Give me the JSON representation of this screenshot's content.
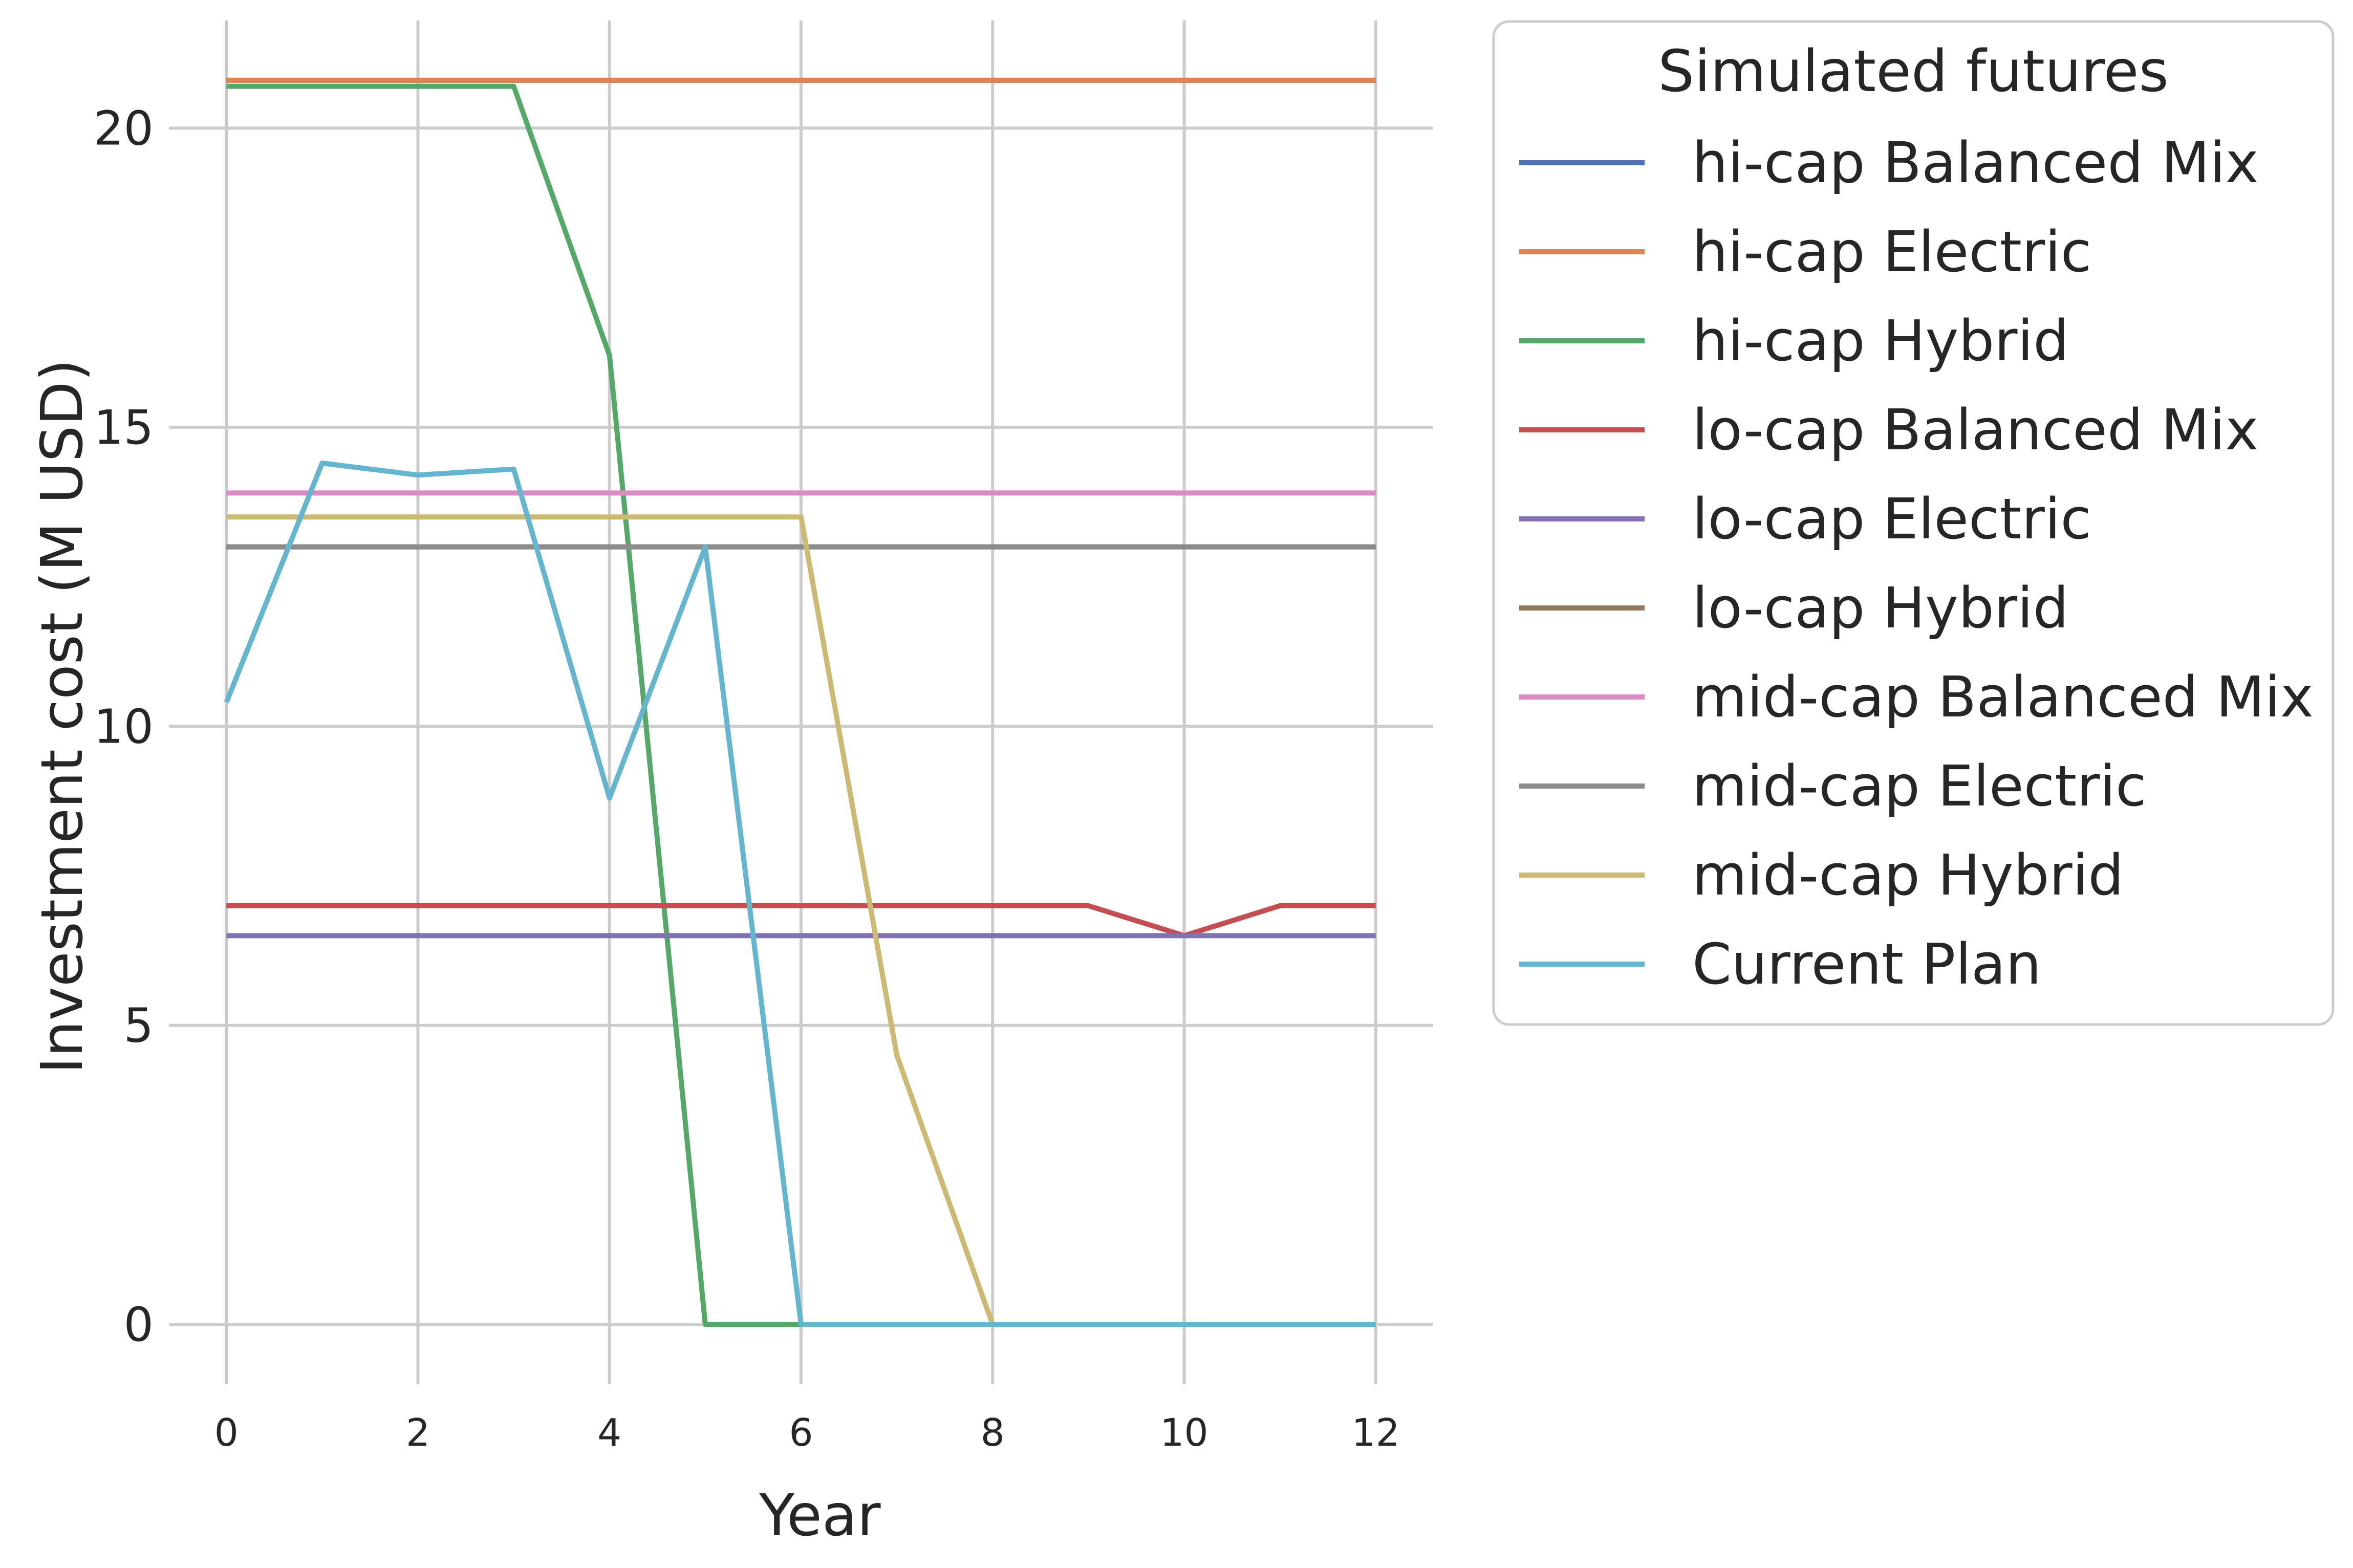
{
  "chart_data": {
    "type": "line",
    "title": "",
    "xlabel": "Year",
    "ylabel": "Investment cost (M USD)",
    "xlim": [
      -0.6,
      12.6
    ],
    "ylim": [
      -1.0,
      21.8
    ],
    "xticks": [
      0,
      2,
      4,
      6,
      8,
      10,
      12
    ],
    "yticks": [
      0,
      5,
      10,
      15,
      20
    ],
    "grid": true,
    "legend": {
      "title": "Simulated futures",
      "placement": "outside-right-top"
    },
    "x": [
      0,
      1,
      2,
      3,
      4,
      5,
      6,
      7,
      8,
      9,
      10,
      11,
      12
    ],
    "series": [
      {
        "name": "hi-cap Balanced Mix",
        "color": "#4c72b0",
        "values": [
          20.8,
          20.8,
          20.8,
          20.8,
          20.8,
          20.8,
          20.8,
          20.8,
          20.8,
          20.8,
          20.8,
          20.8,
          20.8
        ]
      },
      {
        "name": "hi-cap Electric",
        "color": "#dd8452",
        "values": [
          20.8,
          20.8,
          20.8,
          20.8,
          20.8,
          20.8,
          20.8,
          20.8,
          20.8,
          20.8,
          20.8,
          20.8,
          20.8
        ]
      },
      {
        "name": "hi-cap Hybrid",
        "color": "#55a868",
        "values": [
          20.7,
          20.7,
          20.7,
          20.7,
          16.2,
          0,
          0,
          null,
          null,
          null,
          null,
          null,
          null
        ]
      },
      {
        "name": "lo-cap Balanced Mix",
        "color": "#c44e52",
        "values": [
          7.0,
          7.0,
          7.0,
          7.0,
          7.0,
          7.0,
          7.0,
          7.0,
          7.0,
          7.0,
          6.5,
          7.0,
          7.0
        ]
      },
      {
        "name": "lo-cap Electric",
        "color": "#8172b3",
        "values": [
          6.5,
          6.5,
          6.5,
          6.5,
          6.5,
          6.5,
          6.5,
          6.5,
          6.5,
          6.5,
          6.5,
          6.5,
          6.5
        ]
      },
      {
        "name": "lo-cap Hybrid",
        "color": "#937860",
        "values": [
          13.0,
          13.0,
          13.0,
          13.0,
          13.0,
          13.0,
          13.0,
          13.0,
          13.0,
          13.0,
          13.0,
          13.0,
          13.0
        ]
      },
      {
        "name": "mid-cap Balanced Mix",
        "color": "#da8bc3",
        "values": [
          13.9,
          13.9,
          13.9,
          13.9,
          13.9,
          13.9,
          13.9,
          13.9,
          13.9,
          13.9,
          13.9,
          13.9,
          13.9
        ]
      },
      {
        "name": "mid-cap Electric",
        "color": "#8c8c8c",
        "values": [
          13.0,
          13.0,
          13.0,
          13.0,
          13.0,
          13.0,
          13.0,
          13.0,
          13.0,
          13.0,
          13.0,
          13.0,
          13.0
        ]
      },
      {
        "name": "mid-cap Hybrid",
        "color": "#ccb974",
        "values": [
          13.5,
          13.5,
          13.5,
          13.5,
          13.5,
          13.5,
          13.5,
          4.5,
          0,
          0,
          0,
          0,
          0
        ]
      },
      {
        "name": "Current Plan",
        "color": "#64b5cd",
        "values": [
          10.4,
          14.4,
          14.2,
          14.3,
          8.8,
          13.0,
          0,
          0,
          0,
          0,
          0,
          0,
          0
        ]
      }
    ]
  }
}
